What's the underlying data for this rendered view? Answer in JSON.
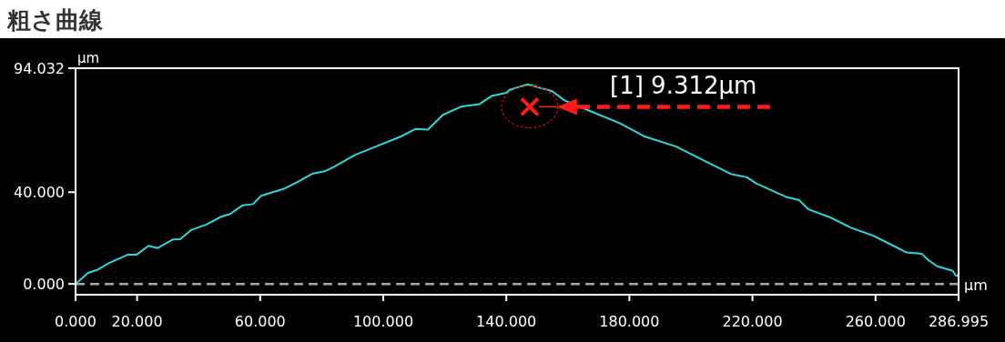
{
  "chart_data": {
    "type": "line",
    "title": "粗さ曲線",
    "xlabel": "µm",
    "ylabel": "µm",
    "x": [
      0,
      4.05,
      7.0,
      10.9,
      16.9,
      19.8,
      23.7,
      26.6,
      31.7,
      34.0,
      37.6,
      42.5,
      47.3,
      50.3,
      54.3,
      57.7,
      60.3,
      68.0,
      72.1,
      76.9,
      81.0,
      83.9,
      90.8,
      98.7,
      105.6,
      110.6,
      114.5,
      119.4,
      125.4,
      131.3,
      135.2,
      140.1,
      141.1,
      147.0,
      154.9,
      158.9,
      166.8,
      177.0,
      184.7,
      195.2,
      201.2,
      213.2,
      218.2,
      221.2,
      231.2,
      235.2,
      238.2,
      245.1,
      252.2,
      259.1,
      265.1,
      270.1,
      275.1,
      277.1,
      280.1,
      285.1,
      286.1,
      286.995
    ],
    "series": [
      {
        "color": "#2fd8d8",
        "values": [
          0,
          4.8,
          6.1,
          9.1,
          12.7,
          12.7,
          16.6,
          15.6,
          19.4,
          19.5,
          23.5,
          25.9,
          29.3,
          30.5,
          34.3,
          34.8,
          38.4,
          41.6,
          44.4,
          48.0,
          49.1,
          51.0,
          56.2,
          60.5,
          64.2,
          67.6,
          67.3,
          73.7,
          77.3,
          78.4,
          81.9,
          83.3,
          84.6,
          87.0,
          84.0,
          80.0,
          75.6,
          70.0,
          64.4,
          59.9,
          55.8,
          47.8,
          46.5,
          43.8,
          37.8,
          36.5,
          32.5,
          29.1,
          24.4,
          21.1,
          17.1,
          13.7,
          13.1,
          10.4,
          7.7,
          5.7,
          3.7,
          3.5
        ]
      },
      {
        "type": "scatter",
        "marker": "cross",
        "color": "#ff1a1a",
        "x": [
          147.6
        ],
        "values": [
          77.2
        ]
      }
    ],
    "xlim": [
      0,
      286.995
    ],
    "ylim": [
      -4.7,
      94.032
    ],
    "xticks": [
      {
        "value": 0,
        "label": "0.000"
      },
      {
        "value": 20,
        "label": "20.000"
      },
      {
        "value": 60,
        "label": "60.000"
      },
      {
        "value": 100,
        "label": "100.000"
      },
      {
        "value": 140,
        "label": "140.000"
      },
      {
        "value": 180,
        "label": "180.000"
      },
      {
        "value": 220,
        "label": "220.000"
      },
      {
        "value": 260,
        "label": "260.000"
      },
      {
        "value": 286.995,
        "label": "286.995"
      }
    ],
    "yticks": [
      {
        "value": 0,
        "label": "0.000"
      },
      {
        "value": 40,
        "label": "40.000"
      },
      {
        "value": 94.032,
        "label": "94.032"
      }
    ],
    "ref_lines": [
      {
        "axis": "y",
        "value": 0,
        "color": "#a6a6a6",
        "line_style": "dashed"
      }
    ],
    "annotations": [
      "[1] 9.312µm"
    ],
    "grid": false
  }
}
